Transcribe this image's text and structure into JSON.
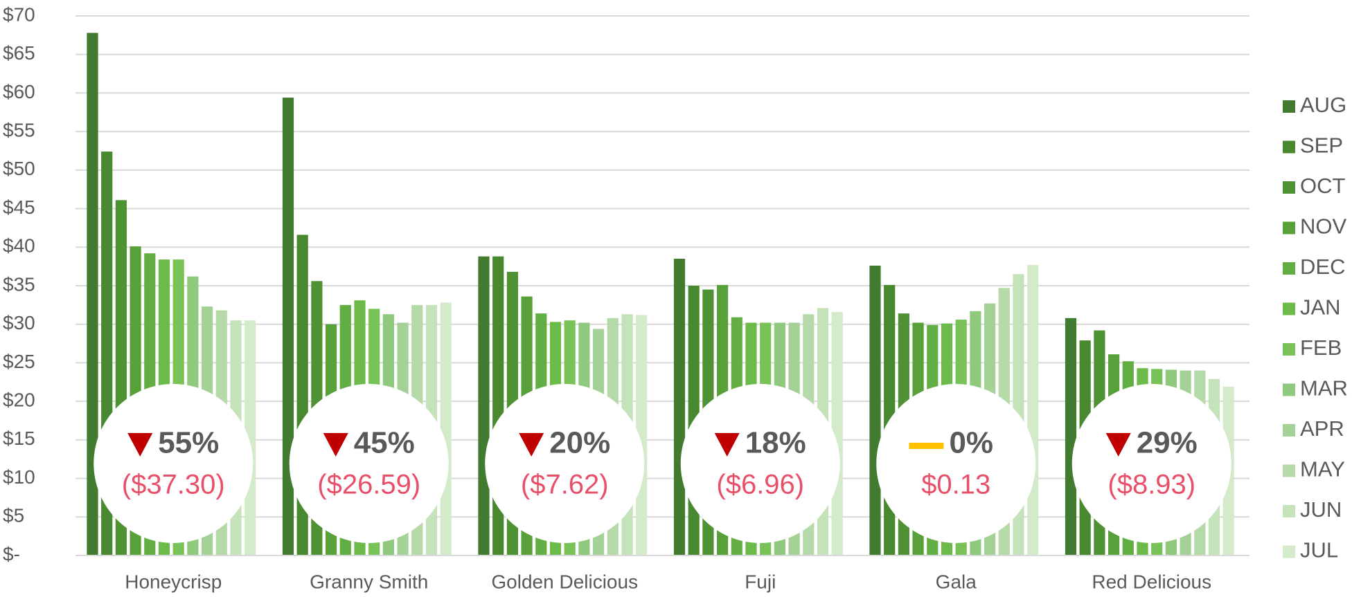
{
  "chart_data": {
    "type": "bar",
    "categories": [
      "Honeycrisp",
      "Granny Smith",
      "Golden Delicious",
      "Fuji",
      "Gala",
      "Red Delicious"
    ],
    "series": [
      {
        "name": "AUG",
        "color": "#407b2f",
        "values": [
          67.8,
          59.4,
          38.8,
          38.5,
          37.6,
          30.8
        ]
      },
      {
        "name": "SEP",
        "color": "#48882f",
        "values": [
          52.4,
          41.6,
          38.8,
          35.0,
          35.1,
          27.9
        ]
      },
      {
        "name": "OCT",
        "color": "#4f9234",
        "values": [
          46.1,
          35.6,
          36.8,
          34.5,
          31.4,
          29.2
        ]
      },
      {
        "name": "NOV",
        "color": "#57a03a",
        "values": [
          40.1,
          30.0,
          33.6,
          35.1,
          30.2,
          26.1
        ]
      },
      {
        "name": "DEC",
        "color": "#62ae43",
        "values": [
          39.2,
          32.5,
          31.4,
          30.9,
          29.9,
          25.2
        ]
      },
      {
        "name": "JAN",
        "color": "#6cbb4a",
        "values": [
          38.4,
          33.1,
          30.3,
          30.2,
          30.1,
          24.3
        ]
      },
      {
        "name": "FEB",
        "color": "#78c257",
        "values": [
          38.4,
          32.0,
          30.5,
          30.2,
          30.6,
          24.2
        ]
      },
      {
        "name": "MAR",
        "color": "#8fc97d",
        "values": [
          36.2,
          31.3,
          30.2,
          30.2,
          31.7,
          24.1
        ]
      },
      {
        "name": "APR",
        "color": "#a3d196",
        "values": [
          32.3,
          30.2,
          29.4,
          30.2,
          32.7,
          24.0
        ]
      },
      {
        "name": "MAY",
        "color": "#b5daa8",
        "values": [
          31.8,
          32.5,
          30.8,
          31.3,
          34.7,
          24.0
        ]
      },
      {
        "name": "JUN",
        "color": "#c5e3bb",
        "values": [
          30.5,
          32.5,
          31.3,
          32.1,
          36.5,
          22.9
        ]
      },
      {
        "name": "JUL",
        "color": "#d3ebcb",
        "values": [
          30.5,
          32.8,
          31.2,
          31.6,
          37.7,
          21.9
        ]
      }
    ],
    "ylim": [
      0,
      70
    ],
    "yticks": [
      {
        "value": 0,
        "label": "$-"
      },
      {
        "value": 5,
        "label": "$5"
      },
      {
        "value": 10,
        "label": "$10"
      },
      {
        "value": 15,
        "label": "$15"
      },
      {
        "value": 20,
        "label": "$20"
      },
      {
        "value": 25,
        "label": "$25"
      },
      {
        "value": 30,
        "label": "$30"
      },
      {
        "value": 35,
        "label": "$35"
      },
      {
        "value": 40,
        "label": "$40"
      },
      {
        "value": 45,
        "label": "$45"
      },
      {
        "value": 50,
        "label": "$50"
      },
      {
        "value": 55,
        "label": "$55"
      },
      {
        "value": 60,
        "label": "$60"
      },
      {
        "value": 65,
        "label": "$65"
      },
      {
        "value": 70,
        "label": "$70"
      }
    ],
    "grid": true,
    "legend": "right",
    "annotations": [
      {
        "percent": "55%",
        "change": "($37.30)",
        "direction": "down"
      },
      {
        "percent": "45%",
        "change": "($26.59)",
        "direction": "down"
      },
      {
        "percent": "20%",
        "change": "($7.62)",
        "direction": "down"
      },
      {
        "percent": "18%",
        "change": "($6.96)",
        "direction": "down"
      },
      {
        "percent": "0%",
        "change": "$0.13",
        "direction": "flat"
      },
      {
        "percent": "29%",
        "change": "($8.93)",
        "direction": "down"
      }
    ]
  }
}
